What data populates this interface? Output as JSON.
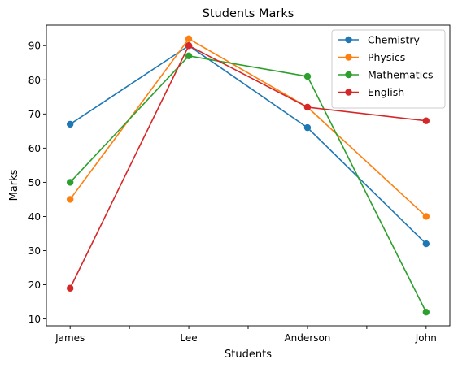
{
  "chart_data": {
    "type": "line",
    "title": "Students Marks",
    "xlabel": "Students",
    "ylabel": "Marks",
    "categories": [
      "James",
      "Lee",
      "Anderson",
      "John"
    ],
    "ylim": [
      8,
      96
    ],
    "yticks": [
      10,
      20,
      30,
      40,
      50,
      60,
      70,
      80,
      90
    ],
    "grid": false,
    "legend_position": "top-right",
    "series": [
      {
        "name": "Chemistry",
        "color": "#1f77b4",
        "values": [
          67,
          90,
          66,
          32
        ]
      },
      {
        "name": "Physics",
        "color": "#ff7f0e",
        "values": [
          45,
          92,
          72,
          40
        ]
      },
      {
        "name": "Mathematics",
        "color": "#2ca02c",
        "values": [
          50,
          87,
          81,
          12
        ]
      },
      {
        "name": "English",
        "color": "#d62728",
        "values": [
          19,
          90,
          72,
          68
        ]
      }
    ]
  }
}
